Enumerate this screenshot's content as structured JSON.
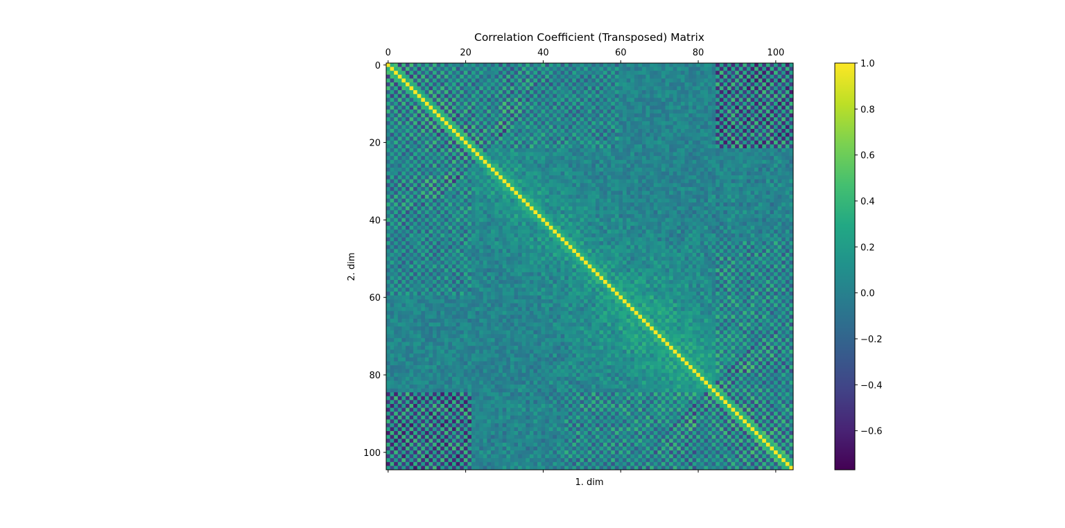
{
  "chart_data": {
    "type": "heatmap",
    "title": "Correlation Coefficient (Transposed) Matrix",
    "xlabel": "1. dim",
    "ylabel": "2. dim",
    "n": 105,
    "x_ticks": [
      0,
      20,
      40,
      60,
      80,
      100
    ],
    "y_ticks": [
      0,
      20,
      40,
      60,
      80,
      100
    ],
    "x_tick_position": "top",
    "y_origin": "top",
    "grid": false,
    "colormap": "viridis",
    "vmin": -0.77,
    "vmax": 1.0,
    "colorbar": {
      "placement": "right",
      "ticks": [
        1.0,
        0.8,
        0.6,
        0.4,
        0.2,
        0.0,
        -0.2,
        -0.4,
        -0.6
      ],
      "tick_labels": [
        "1.0",
        "0.8",
        "0.6",
        "0.4",
        "0.2",
        "0.0",
        "−0.2",
        "−0.4",
        "−0.6"
      ]
    },
    "diagonal_value": 1.0,
    "pattern": "correlation matrix of 105 dimensions; yellow main diagonal with alternating-parity stripes parallel to it near indices 0-25 and 85-104, near-zero teal background, strong negative blocks between dims 0-20 and 85-104"
  }
}
